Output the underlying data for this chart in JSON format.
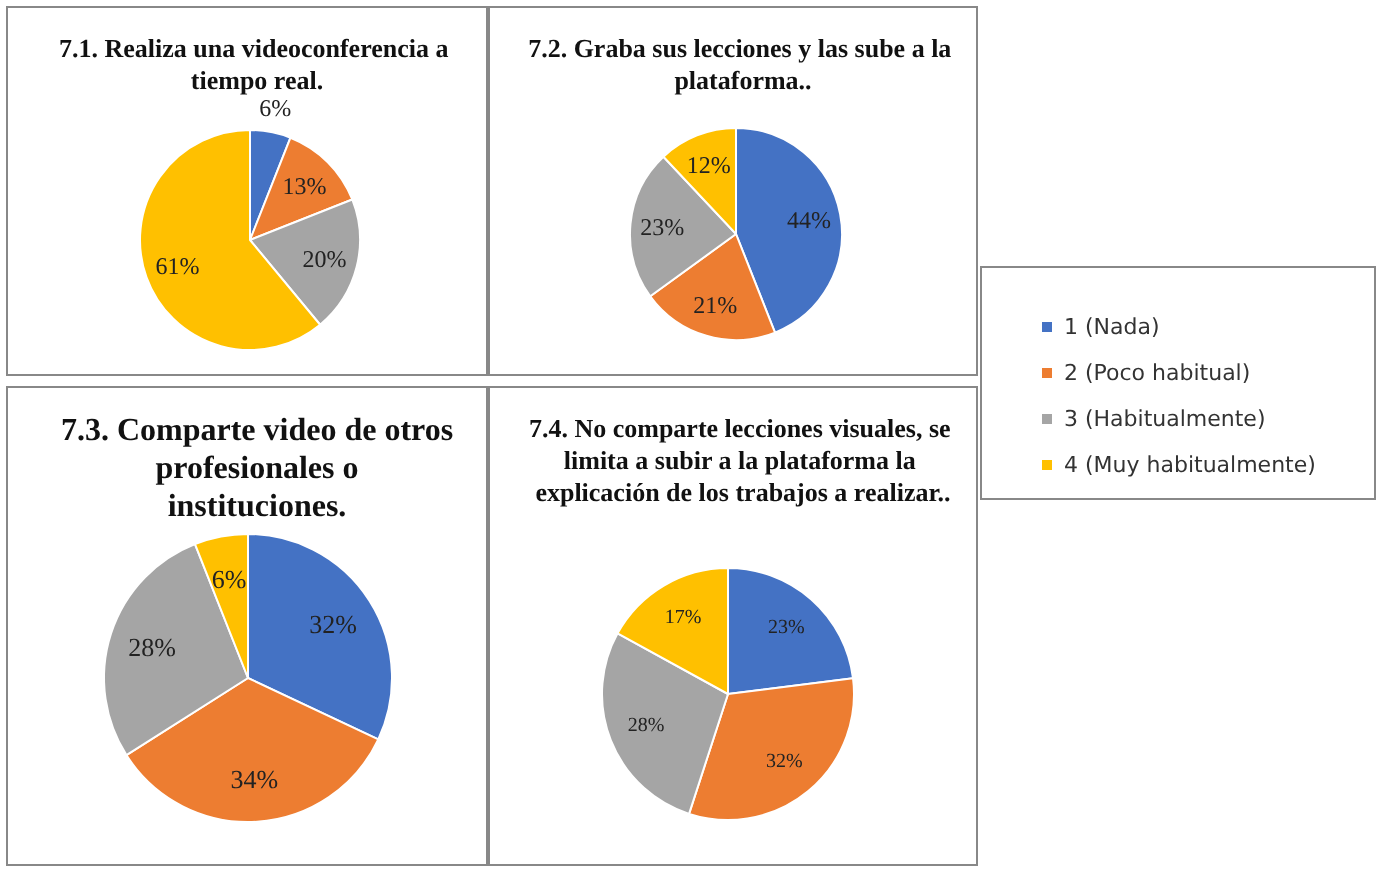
{
  "chart_data": [
    {
      "type": "pie",
      "title": "7.1. Realiza una videoconferencia a tiempo real.",
      "categories": [
        null,
        null,
        null,
        null
      ],
      "values": [
        6,
        13,
        20,
        61
      ],
      "colors": [
        "#4472c4",
        "#ed7d31",
        "#a5a5a5",
        "#ffc000"
      ],
      "value_labels": [
        "6%",
        "13%",
        "20%",
        "61%"
      ]
    },
    {
      "type": "pie",
      "title": "7.2. Graba sus lecciones y las sube a la plataforma..",
      "categories": [
        "1 (Nada)",
        "2 (Poco habitual)",
        "3 (Habitualmente)",
        "4 (Muy habitualmente)"
      ],
      "values": [
        44,
        21,
        23,
        12
      ],
      "colors": [
        "#4472c4",
        "#ed7d31",
        "#a5a5a5",
        "#ffc000"
      ],
      "value_labels": [
        "44%",
        "21%",
        "23%",
        "12%"
      ],
      "legend": "right"
    },
    {
      "type": "pie",
      "title": "7.3. Comparte video de otros profesionales o instituciones.",
      "categories": [
        null,
        null,
        null,
        null
      ],
      "values": [
        32,
        34,
        28,
        6
      ],
      "colors": [
        "#4472c4",
        "#ed7d31",
        "#a5a5a5",
        "#ffc000"
      ],
      "value_labels": [
        "32%",
        "34%",
        "28%",
        "6%"
      ]
    },
    {
      "type": "pie",
      "title": "7.4. No comparte lecciones visuales, se limita a subir a la plataforma la explicación de los trabajos a realizar..",
      "categories": [
        null,
        null,
        null,
        null
      ],
      "values": [
        23,
        32,
        28,
        17
      ],
      "colors": [
        "#4472c4",
        "#ed7d31",
        "#a5a5a5",
        "#ffc000"
      ],
      "value_labels": [
        "23%",
        "32%",
        "28%",
        "17%"
      ]
    }
  ]
}
